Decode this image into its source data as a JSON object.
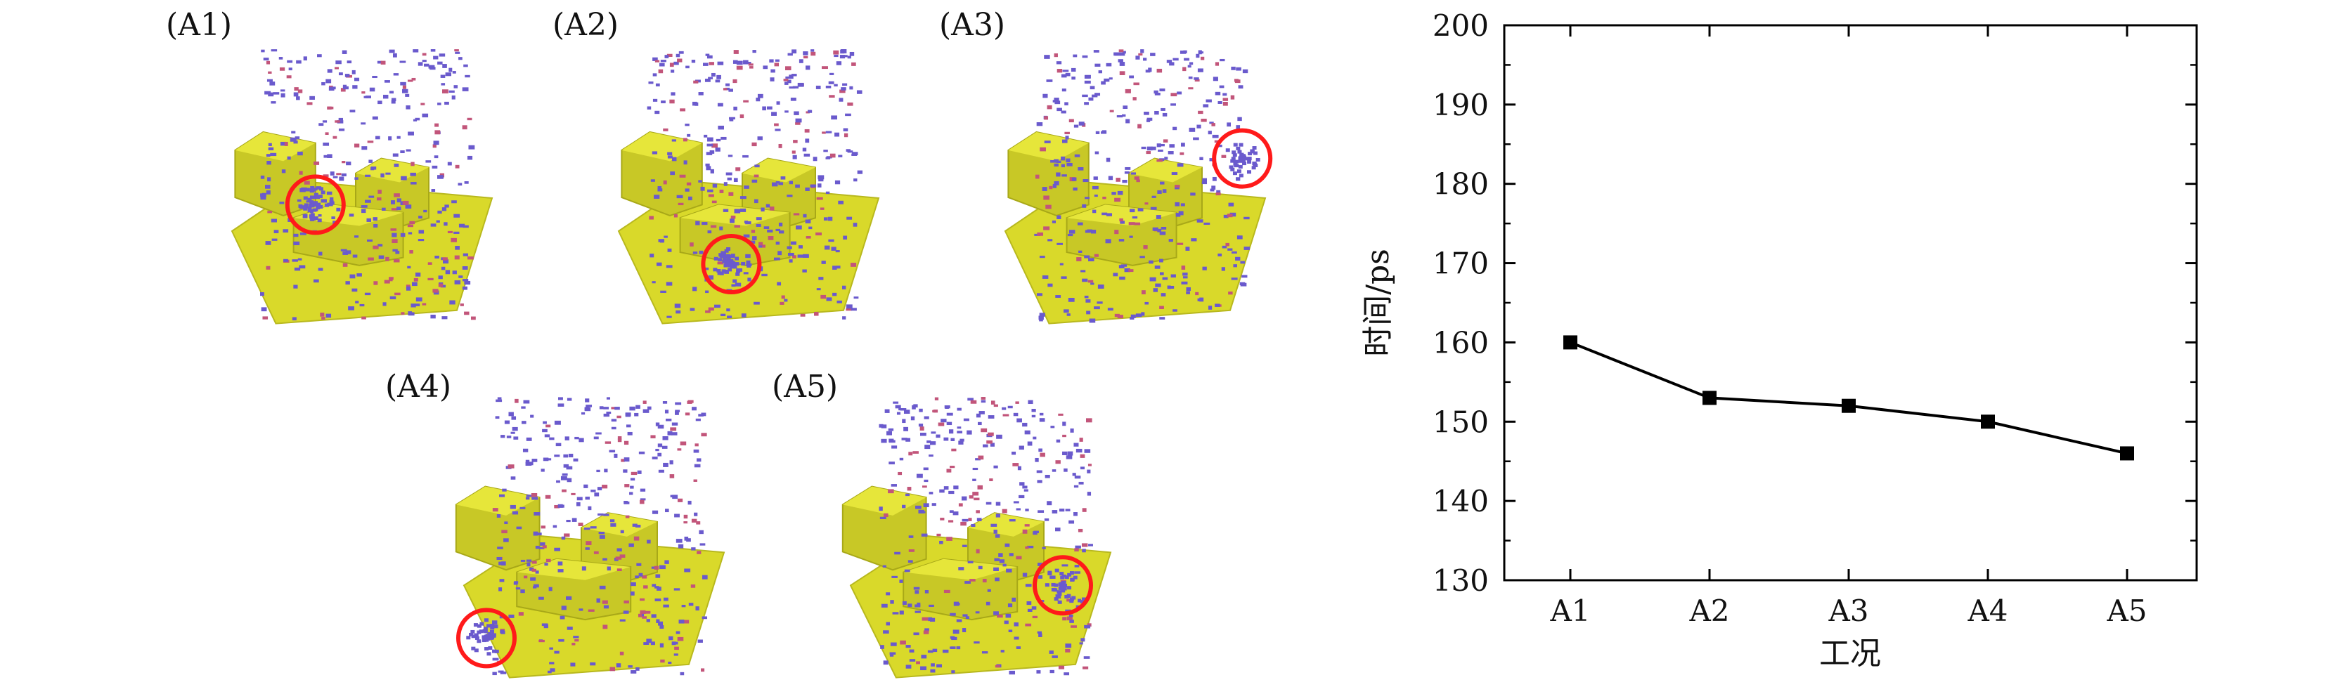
{
  "panels": [
    {
      "label": "(A1)",
      "hollow": "center-left"
    },
    {
      "label": "(A2)",
      "hollow": "center-bottom"
    },
    {
      "label": "(A3)",
      "hollow": "top-right"
    },
    {
      "label": "(A4)",
      "hollow": "bottom-left"
    },
    {
      "label": "(A5)",
      "hollow": "right"
    }
  ],
  "colors": {
    "substrate": "#d9d92a",
    "particles": "#6a5acd",
    "particles_alt": "#c2557a",
    "highlight": "#ff1a1a",
    "line": "#000000"
  },
  "chart_data": {
    "type": "line",
    "categories": [
      "A1",
      "A2",
      "A3",
      "A4",
      "A5"
    ],
    "values": [
      160,
      153,
      152,
      150,
      146
    ],
    "title": "",
    "xlabel": "工况",
    "ylabel": "时间/ps",
    "ylim": [
      130,
      200
    ],
    "yticks": [
      130,
      140,
      150,
      160,
      170,
      180,
      190,
      200
    ],
    "grid": false,
    "marker": "square"
  }
}
